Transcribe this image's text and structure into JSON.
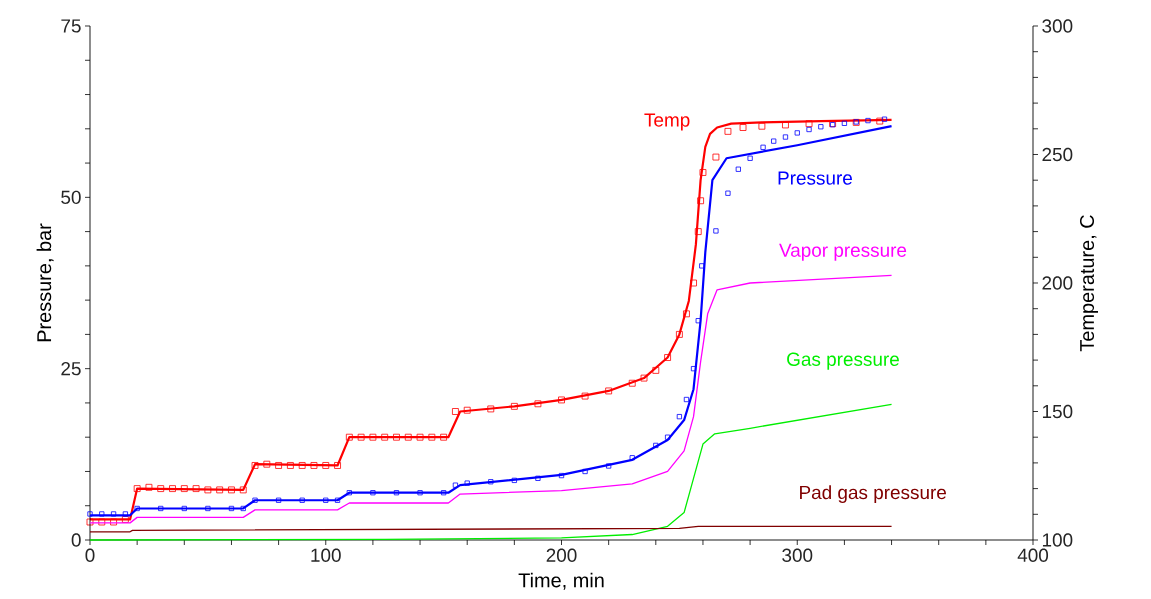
{
  "chart_data": {
    "type": "line",
    "xlabel": "Time, min",
    "ylabel": "Pressure, bar",
    "y2label": "Temperature, C",
    "xlim": [
      0,
      400
    ],
    "ylim": [
      0,
      75
    ],
    "y2lim": [
      100,
      300
    ],
    "xticks": [
      0,
      {
        "value": 20,
        "label": null
      },
      {
        "value": 40,
        "label": null
      },
      {
        "value": 60,
        "label": null
      },
      {
        "value": 80,
        "label": null
      },
      100,
      {
        "value": 120,
        "label": null
      },
      {
        "value": 140,
        "label": null
      },
      {
        "value": 160,
        "label": null
      },
      {
        "value": 180,
        "label": null
      },
      200,
      {
        "value": 220,
        "label": null
      },
      {
        "value": 240,
        "label": null
      },
      {
        "value": 260,
        "label": null
      },
      {
        "value": 280,
        "label": null
      },
      300,
      {
        "value": 320,
        "label": null
      },
      {
        "value": 340,
        "label": null
      },
      {
        "value": 360,
        "label": null
      },
      {
        "value": 380,
        "label": null
      },
      400
    ],
    "yticks": [
      0,
      {
        "value": 5,
        "label": null
      },
      {
        "value": 10,
        "label": null
      },
      {
        "value": 15,
        "label": null
      },
      {
        "value": 20,
        "label": null
      },
      25,
      {
        "value": 30,
        "label": null
      },
      {
        "value": 35,
        "label": null
      },
      {
        "value": 40,
        "label": null
      },
      {
        "value": 45,
        "label": null
      },
      50,
      {
        "value": 55,
        "label": null
      },
      {
        "value": 60,
        "label": null
      },
      {
        "value": 65,
        "label": null
      },
      {
        "value": 70,
        "label": null
      },
      75
    ],
    "y2ticks": [
      100,
      {
        "value": 110,
        "label": null
      },
      {
        "value": 120,
        "label": null
      },
      {
        "value": 130,
        "label": null
      },
      {
        "value": 140,
        "label": null
      },
      150,
      {
        "value": 160,
        "label": null
      },
      {
        "value": 170,
        "label": null
      },
      {
        "value": 180,
        "label": null
      },
      {
        "value": 190,
        "label": null
      },
      200,
      {
        "value": 210,
        "label": null
      },
      {
        "value": 220,
        "label": null
      },
      {
        "value": 230,
        "label": null
      },
      {
        "value": 240,
        "label": null
      },
      250,
      {
        "value": 260,
        "label": null
      },
      {
        "value": 270,
        "label": null
      },
      {
        "value": 280,
        "label": null
      },
      {
        "value": 290,
        "label": null
      },
      300
    ],
    "grid": false,
    "marker": "none",
    "line_style": "solid",
    "series": [
      {
        "name": "Temp",
        "color": "#ff0000",
        "axis": "y2",
        "x": [
          0,
          17,
          20,
          65,
          70,
          105,
          110,
          152,
          157,
          180,
          200,
          220,
          235,
          245,
          250,
          254,
          257,
          259,
          261,
          263,
          266,
          272,
          285,
          310,
          340
        ],
        "values": [
          108,
          108,
          120,
          119.5,
          129.5,
          129,
          140,
          140,
          150,
          152,
          154.5,
          158,
          163,
          171,
          180,
          193,
          215,
          240,
          253,
          258,
          260.5,
          262,
          262.5,
          263,
          263.5
        ]
      },
      {
        "type": "scatter",
        "marker": "square",
        "color": "#ff0000",
        "axis": "y2",
        "x": [
          0,
          5,
          10,
          15,
          20,
          25,
          30,
          35,
          40,
          45,
          50,
          55,
          60,
          65,
          70,
          75,
          80,
          85,
          90,
          95,
          100,
          105,
          110,
          115,
          120,
          125,
          130,
          135,
          140,
          145,
          150,
          155,
          160,
          170,
          180,
          190,
          200,
          210,
          220,
          230,
          235,
          240,
          245,
          250,
          253,
          256,
          258,
          259,
          260,
          265.5,
          270.6,
          277,
          285,
          295,
          305,
          315,
          325,
          335
        ],
        "values": [
          107,
          107,
          107,
          108,
          120,
          120.5,
          120,
          120,
          120,
          120,
          119.5,
          119.5,
          119.5,
          119.5,
          129,
          129.5,
          129,
          129,
          129,
          129,
          129,
          129,
          140,
          140,
          140,
          140,
          140,
          140,
          140,
          140,
          140,
          150,
          150.5,
          151,
          152,
          153,
          154.5,
          156,
          158,
          161,
          163,
          166,
          171,
          180,
          188,
          200,
          220,
          232,
          243,
          249,
          259,
          260.5,
          261,
          261.5,
          262,
          262,
          262.5,
          263
        ]
      },
      {
        "name": "Pressure",
        "color": "#0000ff",
        "x": [
          0,
          17,
          20,
          65,
          70,
          105,
          110,
          152,
          157,
          200,
          230,
          245,
          252,
          256,
          259,
          261,
          264,
          270,
          300,
          340
        ],
        "values": [
          3.6,
          3.6,
          4.6,
          4.6,
          5.8,
          5.8,
          6.9,
          6.9,
          8.0,
          9.5,
          11.7,
          14.6,
          17.5,
          22,
          32,
          42,
          52.5,
          55.7,
          57.6,
          60.4
        ]
      },
      {
        "type": "scatter",
        "marker": "square",
        "color": "#0000ff",
        "x": [
          0,
          5,
          10,
          15,
          20,
          30,
          40,
          50,
          60,
          65,
          70,
          80,
          90,
          100,
          105,
          110,
          120,
          130,
          140,
          150,
          155,
          160,
          170,
          180,
          190,
          200,
          210,
          220,
          230,
          240,
          245,
          250,
          253,
          256,
          258,
          259.5,
          265.5,
          270.6,
          275,
          280,
          285.5,
          290,
          295,
          300,
          305,
          310,
          315,
          320,
          325,
          330,
          337
        ],
        "values": [
          3.8,
          3.8,
          3.8,
          3.8,
          4.6,
          4.6,
          4.6,
          4.6,
          4.6,
          4.6,
          5.8,
          5.8,
          5.8,
          5.8,
          5.8,
          6.9,
          6.9,
          6.9,
          6.9,
          6.9,
          8,
          8.3,
          8.5,
          8.7,
          9,
          9.4,
          10,
          10.8,
          12,
          13.8,
          15,
          18,
          20.5,
          25,
          32,
          40,
          45.1,
          50.6,
          54.1,
          55.7,
          57.3,
          58.2,
          58.8,
          59.4,
          59.9,
          60.3,
          60.6,
          60.8,
          61,
          61.2,
          61.4
        ]
      },
      {
        "name": "Vapor pressure",
        "color": "#ff00ff",
        "x": [
          0,
          17,
          20,
          65,
          70,
          105,
          110,
          152,
          157,
          200,
          230,
          245,
          252,
          256,
          259,
          262,
          266,
          280,
          340
        ],
        "values": [
          2.5,
          2.5,
          3.3,
          3.3,
          4.4,
          4.4,
          5.4,
          5.4,
          6.7,
          7.2,
          8.2,
          10,
          13,
          18,
          26,
          33,
          36.5,
          37.5,
          38.6
        ]
      },
      {
        "name": "Gas pressure",
        "color": "#00ee00",
        "x": [
          0,
          125,
          200,
          230,
          245,
          252,
          256,
          260,
          265,
          280,
          340
        ],
        "values": [
          0,
          0.1,
          0.3,
          0.8,
          2,
          4,
          9,
          14,
          15.5,
          16.3,
          19.8
        ]
      },
      {
        "name": "Pad gas pressure",
        "color": "#800000",
        "x": [
          0,
          17,
          18,
          250,
          258,
          340
        ],
        "values": [
          1.2,
          1.2,
          1.4,
          1.7,
          2.0,
          2.0
        ]
      }
    ]
  }
}
